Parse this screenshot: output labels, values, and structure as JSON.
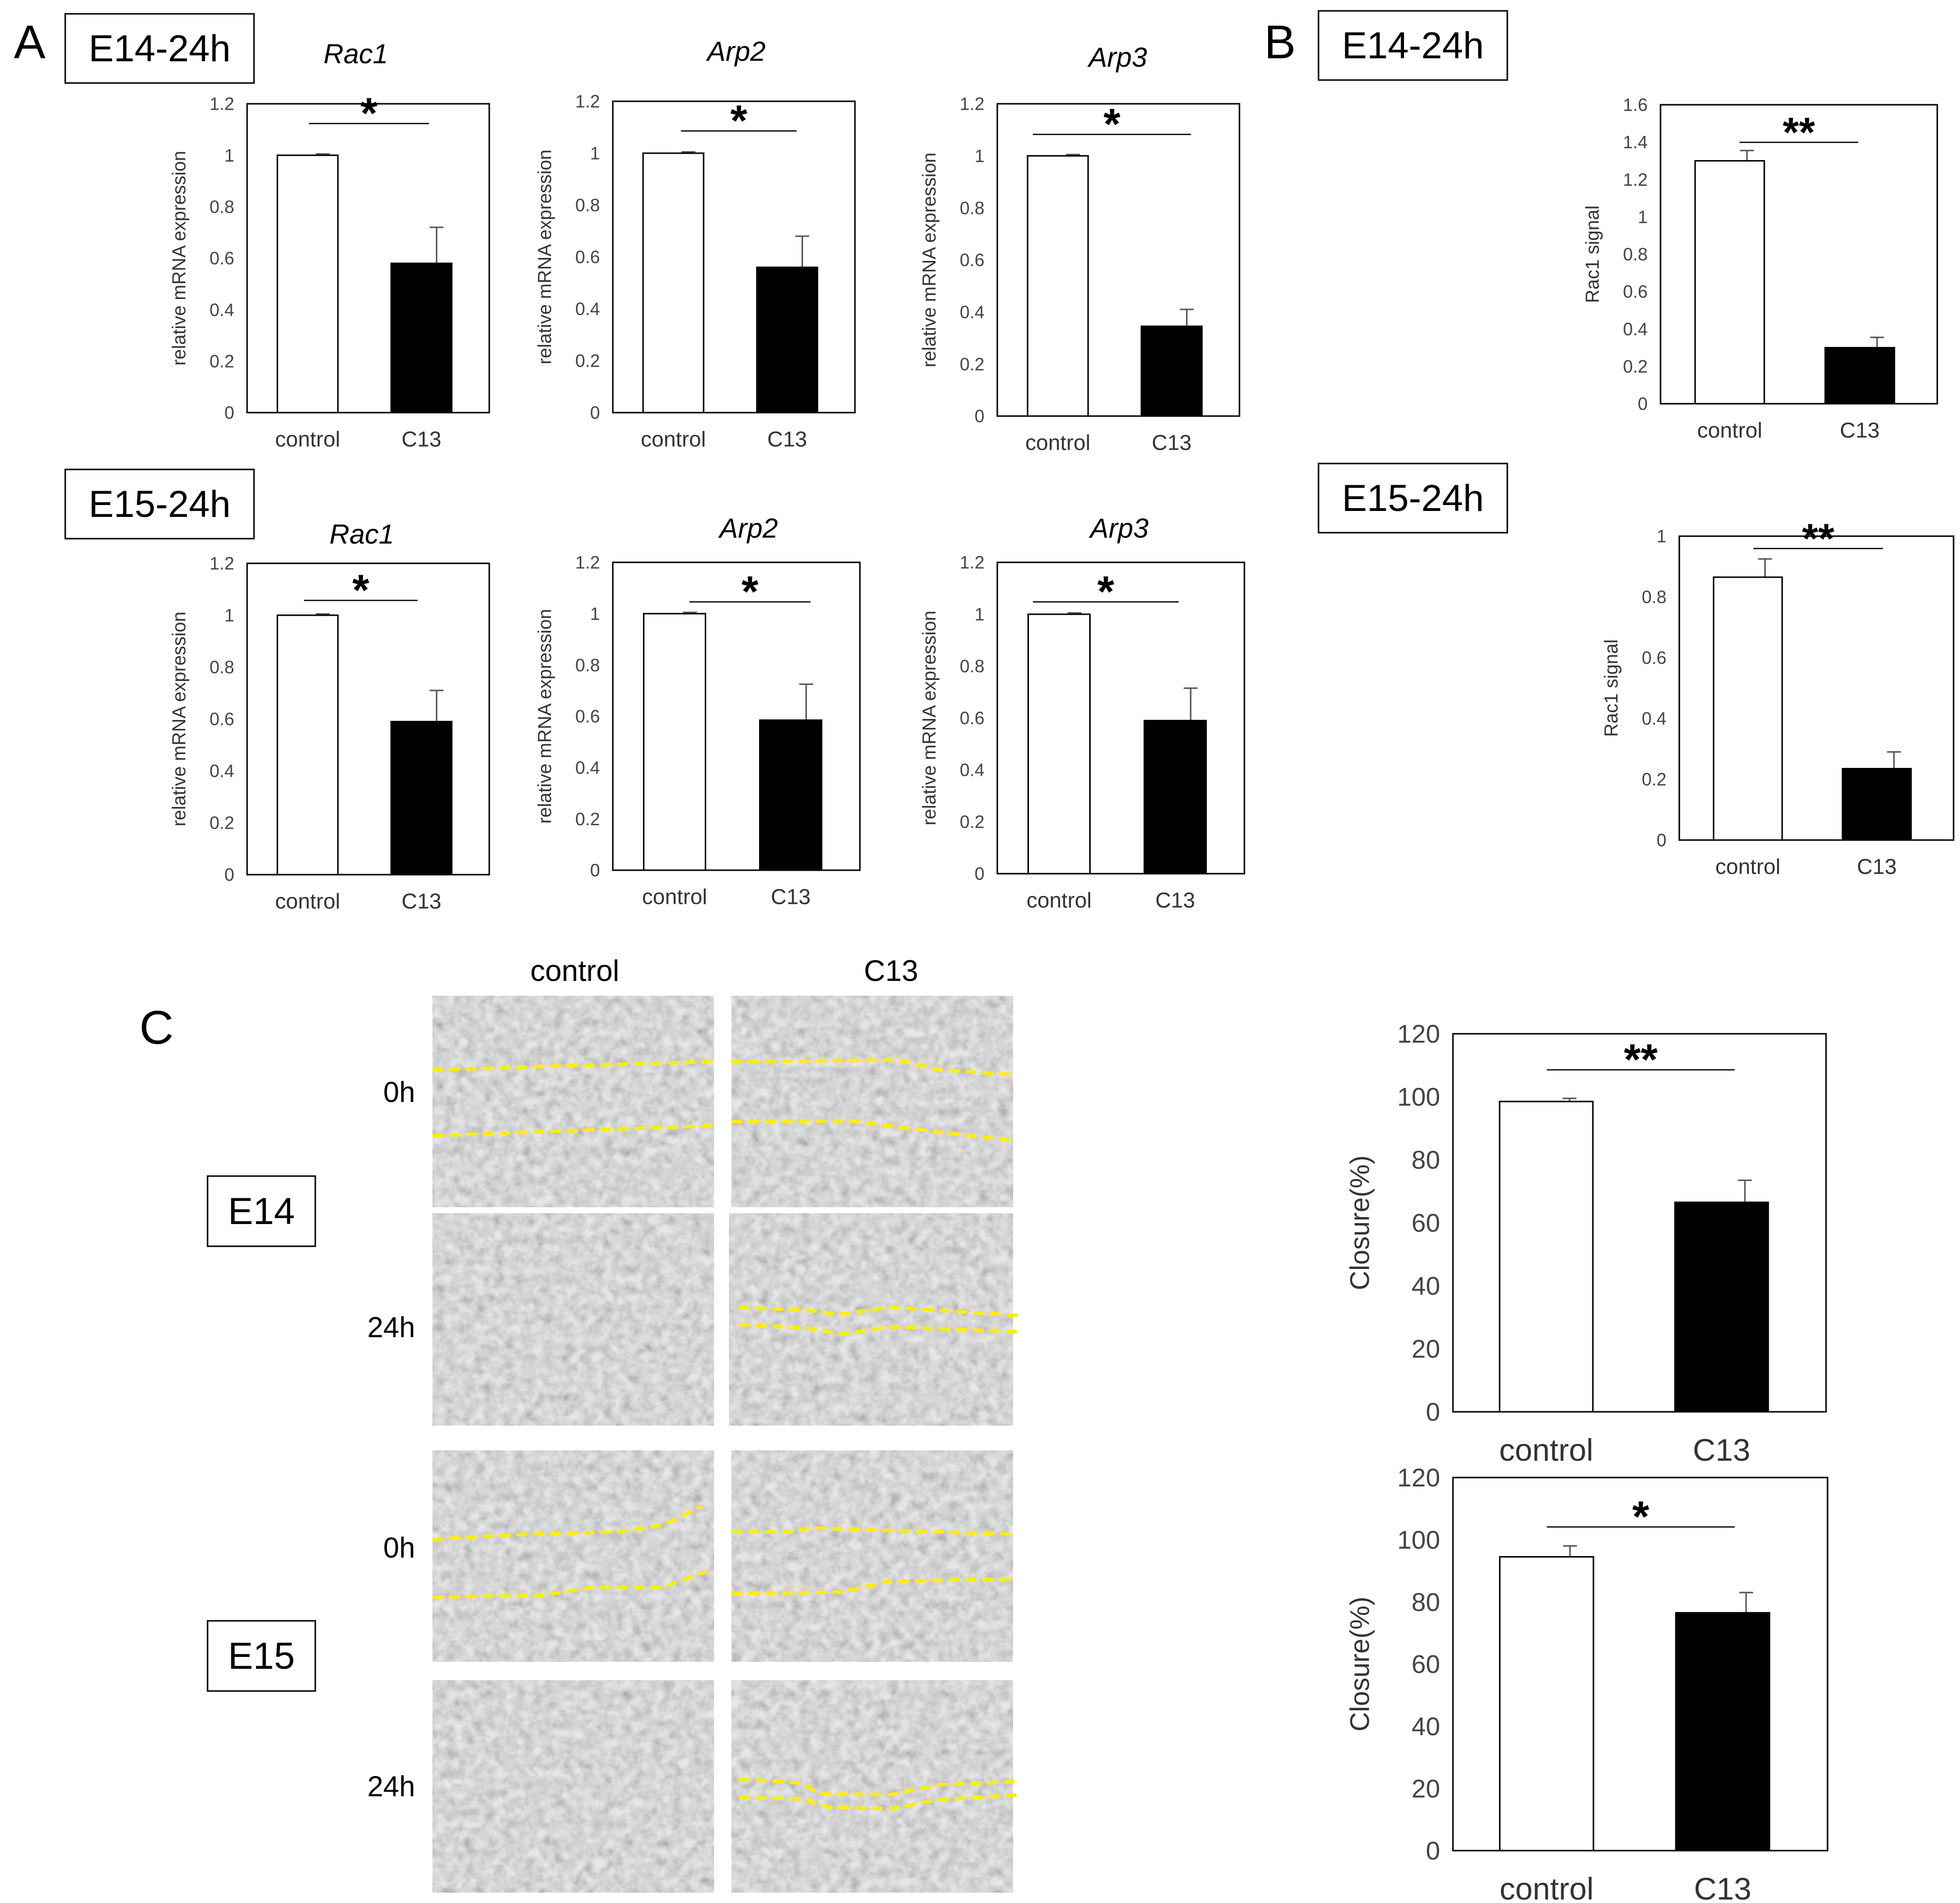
{
  "panel_letters": [
    "A",
    "B",
    "C"
  ],
  "boxed_labels": [
    "E14-24h",
    "E15-24h",
    "E14-24h",
    "E15-24h",
    "E14",
    "E15"
  ],
  "colors": {
    "control": "#ffffff",
    "c13": "#000000",
    "wound_edge": "#ffee00",
    "micro_bg": "#c8c8c8"
  },
  "chart_data": [
    {
      "type": "bar",
      "title": "Rac1",
      "ylabel": "relative mRNA expression",
      "categories": [
        "control",
        "C13"
      ],
      "values": [
        1.0,
        0.58
      ],
      "errors": [
        0.005,
        0.14
      ],
      "ylim": [
        0,
        1.2
      ],
      "yticks": [
        "0",
        "0.2",
        "0.4",
        "0.6",
        "0.8",
        "1",
        "1.2"
      ],
      "significance": "*"
    },
    {
      "type": "bar",
      "title": "Arp2",
      "ylabel": "relative mRNA expression",
      "categories": [
        "control",
        "C13"
      ],
      "values": [
        1.0,
        0.56
      ],
      "errors": [
        0.005,
        0.12
      ],
      "ylim": [
        0,
        1.2
      ],
      "yticks": [
        "0",
        "0.2",
        "0.4",
        "0.6",
        "0.8",
        "1",
        "1.2"
      ],
      "significance": "*"
    },
    {
      "type": "bar",
      "title": "Arp3",
      "ylabel": "relative mRNA expression",
      "categories": [
        "control",
        "C13"
      ],
      "values": [
        1.0,
        0.345
      ],
      "errors": [
        0.005,
        0.065
      ],
      "ylim": [
        0,
        1.2
      ],
      "yticks": [
        "0",
        "0.2",
        "0.4",
        "0.6",
        "0.8",
        "1",
        "1.2"
      ],
      "significance": "*"
    },
    {
      "type": "bar",
      "title": "Rac1",
      "ylabel": "relative mRNA expression",
      "categories": [
        "control",
        "C13"
      ],
      "values": [
        1.0,
        0.59
      ],
      "errors": [
        0.005,
        0.12
      ],
      "ylim": [
        0,
        1.2
      ],
      "yticks": [
        "0",
        "0.2",
        "0.4",
        "0.6",
        "0.8",
        "1",
        "1.2"
      ],
      "significance": "*"
    },
    {
      "type": "bar",
      "title": "Arp2",
      "ylabel": "relative mRNA expression",
      "categories": [
        "control",
        "C13"
      ],
      "values": [
        1.0,
        0.585
      ],
      "errors": [
        0.005,
        0.14
      ],
      "ylim": [
        0,
        1.2
      ],
      "yticks": [
        "0",
        "0.2",
        "0.4",
        "0.6",
        "0.8",
        "1",
        "1.2"
      ],
      "significance": "*"
    },
    {
      "type": "bar",
      "title": "Arp3",
      "ylabel": "relative mRNA expression",
      "categories": [
        "control",
        "C13"
      ],
      "values": [
        1.0,
        0.59
      ],
      "errors": [
        0.005,
        0.125
      ],
      "ylim": [
        0,
        1.2
      ],
      "yticks": [
        "0",
        "0.2",
        "0.4",
        "0.6",
        "0.8",
        "1",
        "1.2"
      ],
      "significance": "*"
    },
    {
      "type": "bar",
      "title": "",
      "ylabel": "Rac1 signal",
      "categories": [
        "control",
        "C13"
      ],
      "values": [
        1.3,
        0.3
      ],
      "errors": [
        0.055,
        0.055
      ],
      "ylim": [
        0,
        1.6
      ],
      "yticks": [
        "0",
        "0.2",
        "0.4",
        "0.6",
        "0.8",
        "1",
        "1.2",
        "1.4",
        "1.6"
      ],
      "significance": "**"
    },
    {
      "type": "bar",
      "title": "",
      "ylabel": "Rac1 signal",
      "categories": [
        "control",
        "C13"
      ],
      "values": [
        0.865,
        0.235
      ],
      "errors": [
        0.06,
        0.055
      ],
      "ylim": [
        0,
        1.0
      ],
      "yticks": [
        "0",
        "0.2",
        "0.4",
        "0.6",
        "0.8",
        "1"
      ],
      "significance": "**"
    },
    {
      "type": "bar",
      "title": "",
      "ylabel": "Closure(%)",
      "categories": [
        "control",
        "C13"
      ],
      "values": [
        98.5,
        66.5
      ],
      "errors": [
        1.0,
        7.0
      ],
      "ylim": [
        0,
        120
      ],
      "yticks": [
        "0",
        "20",
        "40",
        "60",
        "80",
        "100",
        "120"
      ],
      "significance": "**"
    },
    {
      "type": "bar",
      "title": "",
      "ylabel": "Closure(%)",
      "categories": [
        "control",
        "C13"
      ],
      "values": [
        94.5,
        76.5
      ],
      "errors": [
        3.5,
        6.5
      ],
      "ylim": [
        0,
        120
      ],
      "yticks": [
        "0",
        "20",
        "40",
        "60",
        "80",
        "100",
        "120"
      ],
      "significance": "*"
    }
  ],
  "micrographs": {
    "column_labels": [
      "control",
      "C13"
    ],
    "row_labels": [
      "0h",
      "24h",
      "0h",
      "24h"
    ]
  }
}
